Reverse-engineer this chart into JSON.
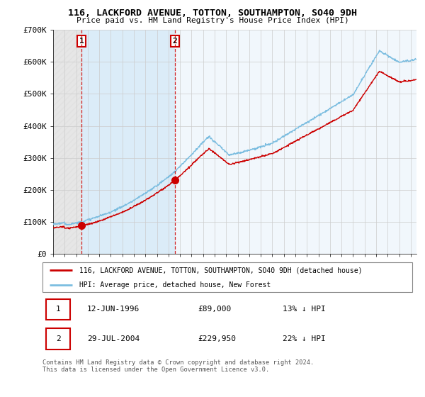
{
  "title1": "116, LACKFORD AVENUE, TOTTON, SOUTHAMPTON, SO40 9DH",
  "title2": "Price paid vs. HM Land Registry's House Price Index (HPI)",
  "legend1": "116, LACKFORD AVENUE, TOTTON, SOUTHAMPTON, SO40 9DH (detached house)",
  "legend2": "HPI: Average price, detached house, New Forest",
  "transactions": [
    {
      "label": "1",
      "date": "12-JUN-1996",
      "year": 1996.45,
      "price": 89000,
      "note": "13% ↓ HPI"
    },
    {
      "label": "2",
      "date": "29-JUL-2004",
      "year": 2004.57,
      "price": 229950,
      "note": "22% ↓ HPI"
    }
  ],
  "footnote": "Contains HM Land Registry data © Crown copyright and database right 2024.\nThis data is licensed under the Open Government Licence v3.0.",
  "hpi_color": "#7bbde0",
  "price_color": "#cc0000",
  "transaction_color": "#cc0000",
  "ylim": [
    0,
    700000
  ],
  "xlim_left": 1994.0,
  "xlim_right": 2025.5,
  "yticks": [
    0,
    100000,
    200000,
    300000,
    400000,
    500000,
    600000,
    700000
  ],
  "ytick_labels": [
    "£0",
    "£100K",
    "£200K",
    "£300K",
    "£400K",
    "£500K",
    "£600K",
    "£700K"
  ],
  "xticks": [
    1994,
    1995,
    1996,
    1997,
    1998,
    1999,
    2000,
    2001,
    2002,
    2003,
    2004,
    2005,
    2006,
    2007,
    2008,
    2009,
    2010,
    2011,
    2012,
    2013,
    2014,
    2015,
    2016,
    2017,
    2018,
    2019,
    2020,
    2021,
    2022,
    2023,
    2024,
    2025
  ]
}
